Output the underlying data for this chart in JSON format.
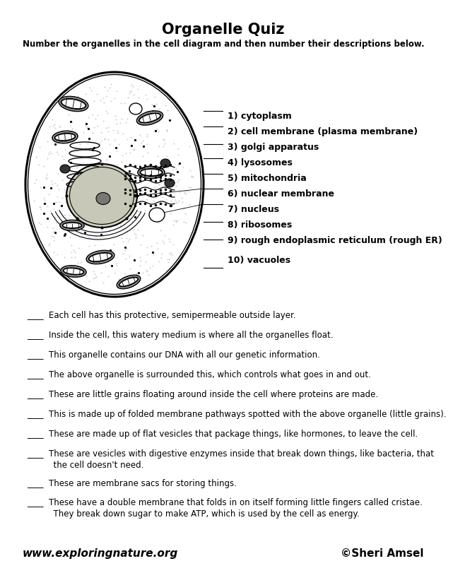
{
  "title": "Organelle Quiz",
  "subtitle": "Number the organelles in the cell diagram and then number their descriptions below.",
  "organelles": [
    "1) cytoplasm",
    "2) cell membrane (plasma membrane)",
    "3) golgi apparatus",
    "4) lysosomes",
    "5) mitochondria",
    "6) nuclear membrane",
    "7) nucleus",
    "8) ribosomes",
    "9) rough endoplasmic reticulum (rough ER)",
    "10) vacuoles"
  ],
  "desc_lines": [
    [
      "____  Each cell has this protective, semipermeable outside layer."
    ],
    [
      "____  Inside the cell, this watery medium is where all the organelles float."
    ],
    [
      "____  This organelle contains our DNA with all our genetic information."
    ],
    [
      "____  The above organelle is surrounded this, which controls what goes in and out."
    ],
    [
      "____  These are little grains floating around inside the cell where proteins are made."
    ],
    [
      "____  This is made up of folded membrane pathways spotted with the above organelle (little grains)."
    ],
    [
      "____  These are made up of flat vesicles that package things, like hormones, to leave the cell."
    ],
    [
      "____  These are vesicles with digestive enzymes inside that break down things, like bacteria, that",
      "          the cell doesn't need."
    ],
    [
      "____  These are membrane sacs for storing things."
    ],
    [
      "____  These have a double membrane that folds in on itself forming little fingers called cristae.",
      "          They break down sugar to make ATP, which is used by the cell as energy."
    ]
  ],
  "footer_left": "www.exploringnature.org",
  "footer_right": "©Sheri Amsel",
  "bg_color": "#ffffff",
  "text_color": "#000000",
  "title_fontsize": 15,
  "subtitle_fontsize": 8.5,
  "organelle_fontsize": 9,
  "desc_fontsize": 8.5,
  "footer_fontsize": 11
}
